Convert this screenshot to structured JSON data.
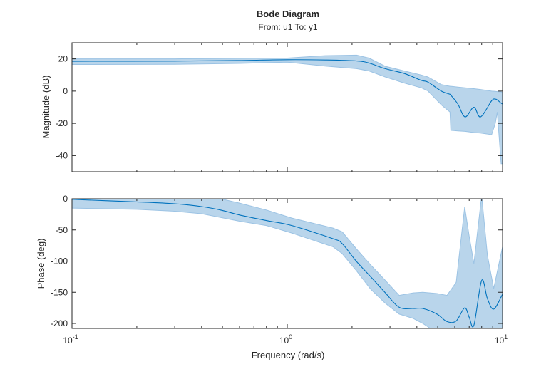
{
  "chart_data": [
    {
      "type": "line",
      "title": "Bode Diagram",
      "subtitle": "From: u1  To: y1",
      "ylabel": "Magnitude (dB)",
      "xscale": "log",
      "xlim": [
        0.1,
        10
      ],
      "ylim": [
        -50,
        30
      ],
      "yticks": [
        20,
        0,
        -20,
        -40
      ],
      "ytick_labels": [
        "20",
        "0",
        "-20",
        "-40"
      ],
      "grid": false,
      "colors": {
        "line": "#0072BD",
        "band": "#b5d3ea"
      },
      "x": [
        0.1,
        0.3,
        0.6,
        1.0,
        1.5,
        2.1,
        2.4,
        2.85,
        3.5,
        4.2,
        4.5,
        5.2,
        5.7,
        5.75,
        6.2,
        6.7,
        7.36,
        7.9,
        8.9,
        9.25,
        9.45,
        9.85,
        10
      ],
      "series": [
        {
          "role": "nominal",
          "values": [
            18.5,
            18.6,
            19,
            19.5,
            19.3,
            18.7,
            17.4,
            13.9,
            10.9,
            6.6,
            5.6,
            0,
            -2,
            -2.5,
            -8,
            -16,
            -10,
            -16,
            -6,
            -5,
            -5.5,
            -7.5,
            -8
          ]
        },
        {
          "role": "upper bound",
          "values": [
            20,
            20,
            20.3,
            20.5,
            22,
            22.3,
            20.5,
            15.4,
            12.5,
            10,
            8.8,
            4,
            3,
            3,
            2.5,
            2,
            1.5,
            1,
            0,
            -0.2,
            -0.3,
            -0.5,
            -1
          ]
        },
        {
          "role": "lower bound",
          "values": [
            16.5,
            16.6,
            17.2,
            18,
            15.5,
            13.9,
            12.5,
            8.8,
            5,
            2,
            0.1,
            -8.6,
            -13,
            -24.3,
            -24.7,
            -25,
            -25.7,
            -26,
            -27,
            -20,
            -13,
            -45,
            -45
          ]
        }
      ]
    },
    {
      "type": "line",
      "ylabel": "Phase (deg)",
      "xlabel": "Frequency (rad/s)",
      "xscale": "log",
      "xlim": [
        0.1,
        10
      ],
      "ylim": [
        -208,
        0
      ],
      "xtick_labels": [
        {
          "base": "10",
          "exp": "-1"
        },
        {
          "base": "10",
          "exp": "0"
        },
        {
          "base": "10",
          "exp": "1"
        }
      ],
      "xticks": [
        0.1,
        1,
        10
      ],
      "yticks": [
        0,
        -50,
        -100,
        -150,
        -200
      ],
      "ytick_labels": [
        "0",
        "-50",
        "-100",
        "-150",
        "-200"
      ],
      "grid": false,
      "x": [
        0.1,
        0.2,
        0.3,
        0.4,
        0.49,
        0.6,
        0.8,
        1.05,
        1.63,
        1.8,
        2.09,
        2.44,
        2.84,
        3.31,
        3.85,
        4.26,
        4.96,
        5.52,
        6.09,
        6.67,
        7.0,
        7.36,
        8.0,
        8.5,
        9.1,
        10
      ],
      "series": [
        {
          "role": "nominal",
          "values": [
            -1,
            -5,
            -8,
            -12.6,
            -18,
            -26,
            -35,
            -43,
            -64,
            -72,
            -100,
            -125,
            -150,
            -174,
            -176,
            -176,
            -185,
            -197,
            -196,
            -175,
            -190,
            -203,
            -131,
            -160,
            -177,
            -153
          ]
        },
        {
          "role": "upper bound",
          "values": [
            0,
            0,
            2,
            2,
            0,
            -7,
            -18,
            -31,
            -47,
            -53,
            -80,
            -106,
            -130,
            -155,
            -151,
            -150,
            -152,
            -155,
            -134,
            -13,
            -60,
            -104,
            5,
            -90,
            -144,
            -77
          ]
        },
        {
          "role": "lower bound",
          "values": [
            -15,
            -17,
            -20,
            -24,
            -30,
            -36,
            -43,
            -55,
            -77,
            -88,
            -115,
            -145,
            -167,
            -185,
            -192,
            -200,
            -215,
            -230,
            -230,
            -230,
            -230,
            -230,
            -230,
            -230,
            -230,
            -208
          ]
        }
      ]
    }
  ]
}
